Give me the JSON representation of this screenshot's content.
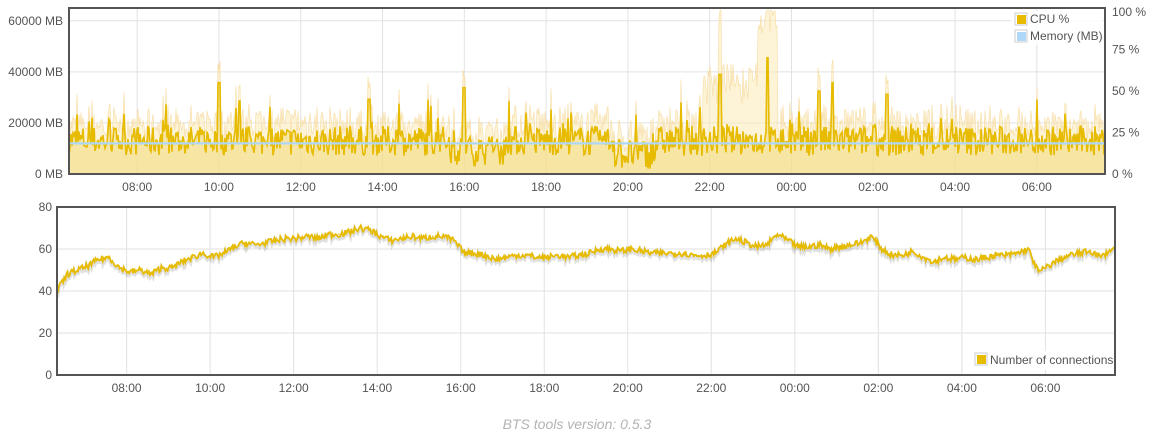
{
  "chart_data": [
    {
      "type": "area",
      "x_axis": {
        "ticks": [
          "08:00",
          "10:00",
          "12:00",
          "14:00",
          "16:00",
          "18:00",
          "20:00",
          "22:00",
          "00:00",
          "02:00",
          "04:00",
          "06:00"
        ]
      },
      "y_left": {
        "ticks": [
          "0 MB",
          "20000 MB",
          "40000 MB",
          "60000 MB"
        ],
        "ylim": [
          0,
          65000
        ]
      },
      "y_right": {
        "ticks": [
          "0 %",
          "25 %",
          "50 %",
          "75 %",
          "100 %"
        ],
        "ylim": [
          0,
          100
        ]
      },
      "legend_position": "top-right",
      "grid": true,
      "series": [
        {
          "name": "CPU %",
          "color": "#e6bb00",
          "axis": "right"
        },
        {
          "name": "Memory (MB)",
          "color": "#afd8f8",
          "axis": "left"
        }
      ]
    },
    {
      "type": "line",
      "x_axis": {
        "ticks": [
          "08:00",
          "10:00",
          "12:00",
          "14:00",
          "16:00",
          "18:00",
          "20:00",
          "22:00",
          "00:00",
          "02:00",
          "04:00",
          "06:00"
        ]
      },
      "y_axis": {
        "ticks": [
          "0",
          "20",
          "40",
          "60",
          "80"
        ],
        "ylim": [
          0,
          80
        ]
      },
      "legend_position": "bottom-right",
      "grid": true,
      "series": [
        {
          "name": "Number of connections",
          "color": "#e6bb00",
          "points": [
            [
              "06:20",
              40
            ],
            [
              "06:35",
              48
            ],
            [
              "06:50",
              50
            ],
            [
              "07:05",
              52
            ],
            [
              "07:20",
              55
            ],
            [
              "07:35",
              56
            ],
            [
              "07:50",
              51
            ],
            [
              "08:05",
              49
            ],
            [
              "08:20",
              50
            ],
            [
              "08:35",
              48
            ],
            [
              "08:50",
              51
            ],
            [
              "09:05",
              51
            ],
            [
              "09:20",
              54
            ],
            [
              "09:35",
              56
            ],
            [
              "09:50",
              58
            ],
            [
              "10:05",
              56
            ],
            [
              "10:20",
              58
            ],
            [
              "10:35",
              61
            ],
            [
              "10:50",
              63
            ],
            [
              "11:05",
              62
            ],
            [
              "11:20",
              63
            ],
            [
              "11:35",
              64
            ],
            [
              "11:50",
              65
            ],
            [
              "12:05",
              65
            ],
            [
              "12:20",
              66
            ],
            [
              "12:35",
              65
            ],
            [
              "12:50",
              67
            ],
            [
              "13:05",
              67
            ],
            [
              "13:20",
              68
            ],
            [
              "13:35",
              70
            ],
            [
              "13:50",
              69
            ],
            [
              "14:05",
              66
            ],
            [
              "14:20",
              64
            ],
            [
              "14:35",
              65
            ],
            [
              "14:50",
              66
            ],
            [
              "15:05",
              65
            ],
            [
              "15:20",
              66
            ],
            [
              "15:35",
              66
            ],
            [
              "15:50",
              64
            ],
            [
              "16:05",
              58
            ],
            [
              "16:20",
              58
            ],
            [
              "16:35",
              57
            ],
            [
              "16:50",
              55
            ],
            [
              "17:05",
              56
            ],
            [
              "17:20",
              57
            ],
            [
              "17:35",
              57
            ],
            [
              "17:50",
              56
            ],
            [
              "18:05",
              56
            ],
            [
              "18:20",
              57
            ],
            [
              "18:35",
              56
            ],
            [
              "18:50",
              57
            ],
            [
              "19:05",
              58
            ],
            [
              "19:20",
              60
            ],
            [
              "19:35",
              60
            ],
            [
              "19:50",
              59
            ],
            [
              "20:05",
              60
            ],
            [
              "20:20",
              59
            ],
            [
              "20:35",
              58
            ],
            [
              "20:50",
              58
            ],
            [
              "21:05",
              58
            ],
            [
              "21:20",
              58
            ],
            [
              "21:35",
              57
            ],
            [
              "21:50",
              57
            ],
            [
              "22:05",
              58
            ],
            [
              "22:20",
              62
            ],
            [
              "22:35",
              65
            ],
            [
              "22:50",
              63
            ],
            [
              "23:05",
              61
            ],
            [
              "23:20",
              62
            ],
            [
              "23:35",
              67
            ],
            [
              "23:50",
              64
            ],
            [
              "00:05",
              61
            ],
            [
              "00:20",
              61
            ],
            [
              "00:35",
              62
            ],
            [
              "00:50",
              60
            ],
            [
              "01:05",
              61
            ],
            [
              "01:20",
              62
            ],
            [
              "01:35",
              63
            ],
            [
              "01:50",
              66
            ],
            [
              "02:05",
              60
            ],
            [
              "02:20",
              57
            ],
            [
              "02:35",
              57
            ],
            [
              "02:50",
              59
            ],
            [
              "03:05",
              56
            ],
            [
              "03:20",
              54
            ],
            [
              "03:35",
              56
            ],
            [
              "03:50",
              55
            ],
            [
              "04:05",
              56
            ],
            [
              "04:20",
              55
            ],
            [
              "04:35",
              56
            ],
            [
              "04:50",
              57
            ],
            [
              "05:05",
              57
            ],
            [
              "05:20",
              58
            ],
            [
              "05:35",
              60
            ],
            [
              "05:50",
              49
            ],
            [
              "06:05",
              52
            ],
            [
              "06:20",
              55
            ],
            [
              "06:35",
              57
            ],
            [
              "06:50",
              58
            ],
            [
              "07:05",
              59
            ],
            [
              "07:20",
              56
            ],
            [
              "07:35",
              60
            ]
          ]
        }
      ]
    }
  ],
  "footer": {
    "text": "BTS tools version: 0.5.3"
  }
}
